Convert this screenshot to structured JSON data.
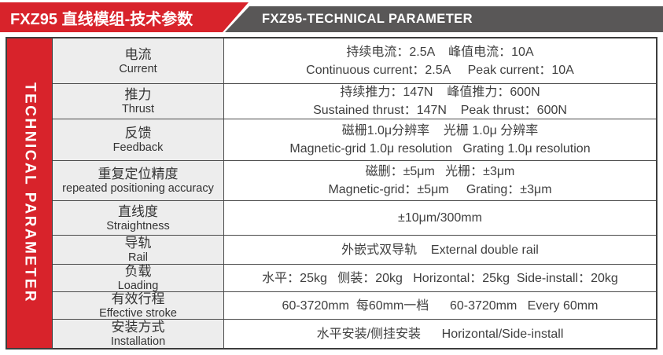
{
  "header": {
    "title_zh": "FXZ95 直线模组-技术参数",
    "title_en": "FXZ95-TECHNICAL PARAMETER"
  },
  "side_banner": {
    "text": "TECHNICAL PARAMETER"
  },
  "colors": {
    "accent_red": "#d8232b",
    "bar_gray": "#595757",
    "label_bg": "#ededed",
    "border_dark": "#3d3d3d"
  },
  "table": {
    "rows": [
      {
        "label_zh": "电流",
        "label_en": "Current",
        "value_line1": "持续电流：2.5A    峰值电流：10A",
        "value_line2": "Continuous current：2.5A     Peak current：10A"
      },
      {
        "label_zh": "推力",
        "label_en": "Thrust",
        "value_line1": "持续推力：147N    峰值推力：600N",
        "value_line2": "Sustained thrust：147N    Peak thrust：600N"
      },
      {
        "label_zh": "反馈",
        "label_en": "Feedback",
        "value_line1": "磁栅1.0μ分辨率    光栅 1.0μ 分辨率",
        "value_line2": "Magnetic-grid 1.0μ resolution   Grating 1.0μ resolution"
      },
      {
        "label_zh": "重复定位精度",
        "label_en": "repeated positioning accuracy",
        "value_line1": "磁删：±5μm   光栅：±3μm",
        "value_line2": "Magnetic-grid：±5μm     Grating：±3μm"
      },
      {
        "label_zh": "直线度",
        "label_en": "Straightness",
        "value_line1": "±10μm/300mm"
      },
      {
        "label_zh": "导轨",
        "label_en": "Rail",
        "value_line1": "外嵌式双导轨    External double rail"
      },
      {
        "label_zh": "负载",
        "label_en": "Loading",
        "value_line1": "水平：25kg   侧装：20kg   Horizontal：25kg  Side-install：20kg"
      },
      {
        "label_zh": "有效行程",
        "label_en": "Effective stroke",
        "value_line1": "60-3720mm  每60mm一档      60-3720mm   Every 60mm"
      },
      {
        "label_zh": "安装方式",
        "label_en": "Installation",
        "value_line1": "水平安装/侧挂安装      Horizontal/Side-install"
      }
    ]
  }
}
